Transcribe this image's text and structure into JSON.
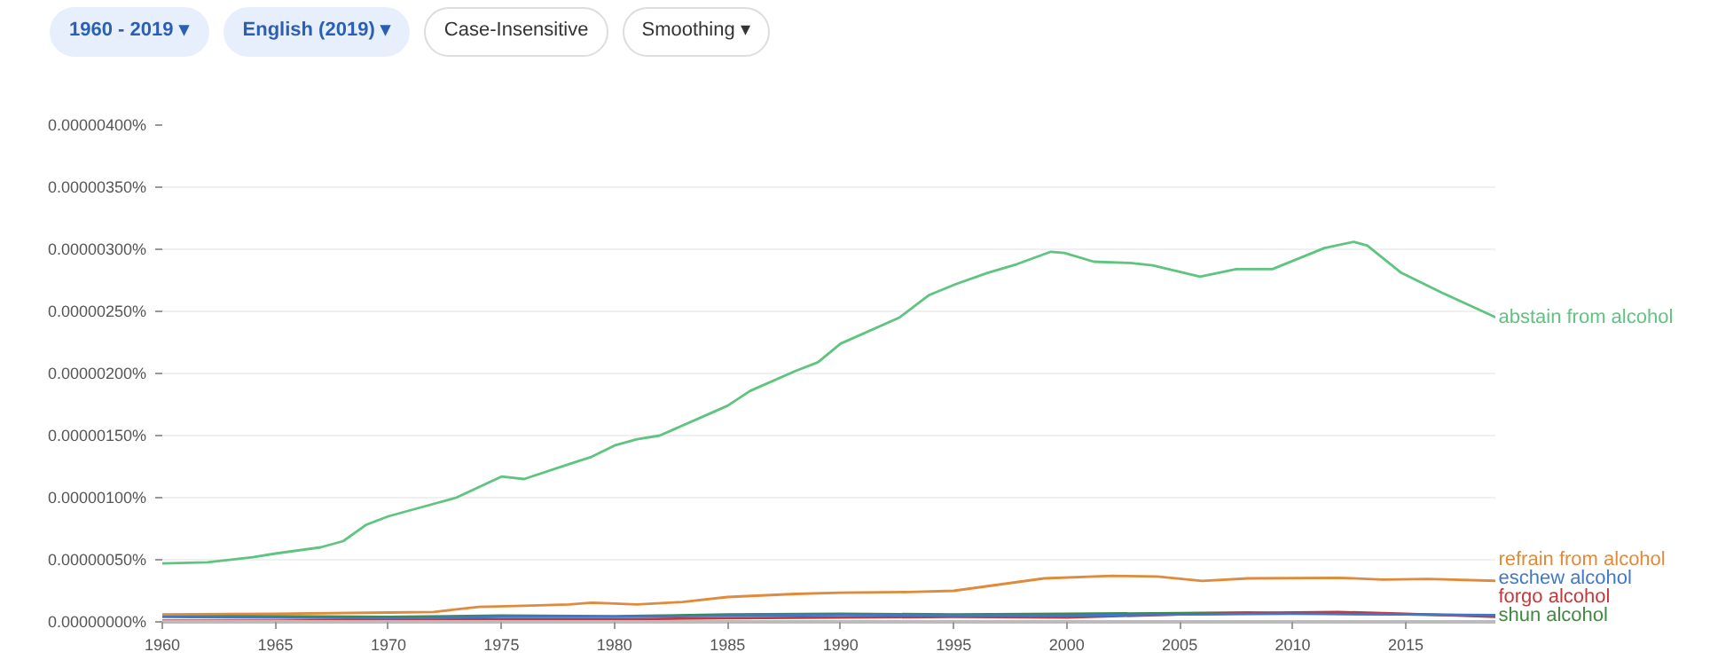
{
  "chart_data": {
    "type": "line",
    "annotations": [
      "1960 - 2019 ▾",
      "English (2019) ▾",
      "Case-Insensitive",
      "Smoothing ▾"
    ],
    "xlim": [
      1960,
      2019
    ],
    "xticks": [
      1960,
      1965,
      1970,
      1975,
      1980,
      1985,
      1990,
      1995,
      2000,
      2005,
      2010,
      2015
    ],
    "ylim": [
      0,
      4e-06
    ],
    "yticks": [
      {
        "value": 0,
        "label": "0.00000000%"
      },
      {
        "value": 5e-07,
        "label": "0.00000050%"
      },
      {
        "value": 1e-06,
        "label": "0.00000100%"
      },
      {
        "value": 1.5e-06,
        "label": "0.00000150%"
      },
      {
        "value": 2e-06,
        "label": "0.00000200%"
      },
      {
        "value": 2.5e-06,
        "label": "0.00000250%"
      },
      {
        "value": 3e-06,
        "label": "0.00000300%"
      },
      {
        "value": 3.5e-06,
        "label": "0.00000350%"
      },
      {
        "value": 4e-06,
        "label": "0.00000400%"
      }
    ],
    "grid": "y",
    "line_style": "solid",
    "marker": "none",
    "series": [
      {
        "name": "abstain from alcohol",
        "color": "#5ec47f",
        "x": [
          1960,
          1962,
          1964,
          1965,
          1967,
          1968,
          1969,
          1970,
          1972,
          1973,
          1975,
          1976,
          1978,
          1979,
          1980,
          1981,
          1982,
          1984,
          1985,
          1986,
          1988,
          1989,
          1990,
          1992.6,
          1993.9,
          1995.1,
          1996.5,
          1997.8,
          1999.3,
          1999.9,
          2001.2,
          2002.8,
          2003.8,
          2005.9,
          2007.5,
          2009.1,
          2011.4,
          2012.7,
          2013.3,
          2014.8,
          2016.6,
          2019
        ],
        "values": [
          4.7e-07,
          4.8e-07,
          5.2e-07,
          5.5e-07,
          6e-07,
          6.5e-07,
          7.8e-07,
          8.5e-07,
          9.5e-07,
          1e-06,
          1.17e-06,
          1.15e-06,
          1.27e-06,
          1.33e-06,
          1.42e-06,
          1.47e-06,
          1.5e-06,
          1.66e-06,
          1.74e-06,
          1.86e-06,
          2.02e-06,
          2.09e-06,
          2.24e-06,
          2.45e-06,
          2.63e-06,
          2.72e-06,
          2.81e-06,
          2.88e-06,
          2.98e-06,
          2.97e-06,
          2.9e-06,
          2.89e-06,
          2.87e-06,
          2.78e-06,
          2.84e-06,
          2.84e-06,
          3.01e-06,
          3.06e-06,
          3.03e-06,
          2.81e-06,
          2.65e-06,
          2.45e-06
        ]
      },
      {
        "name": "refrain from alcohol",
        "color": "#e08a3c",
        "x": [
          1960,
          1965,
          1970,
          1972,
          1974,
          1976,
          1978,
          1979,
          1981,
          1983,
          1985,
          1988,
          1990,
          1993,
          1995,
          1997,
          1999,
          2002,
          2004,
          2006,
          2008,
          2012,
          2014,
          2016,
          2019
        ],
        "values": [
          6e-08,
          6.5e-08,
          7.5e-08,
          8e-08,
          1.2e-07,
          1.3e-07,
          1.4e-07,
          1.55e-07,
          1.4e-07,
          1.6e-07,
          2e-07,
          2.25e-07,
          2.35e-07,
          2.4e-07,
          2.5e-07,
          3e-07,
          3.5e-07,
          3.7e-07,
          3.65e-07,
          3.3e-07,
          3.5e-07,
          3.55e-07,
          3.4e-07,
          3.45e-07,
          3.3e-07
        ]
      },
      {
        "name": "eschew alcohol",
        "color": "#3f78c9",
        "x": [
          1960,
          1965,
          1970,
          1975,
          1980,
          1985,
          1990,
          1995,
          2000,
          2005,
          2010,
          2015,
          2019
        ],
        "values": [
          4e-08,
          3.5e-08,
          3e-08,
          4e-08,
          4e-08,
          5e-08,
          5.5e-08,
          5e-08,
          5e-08,
          6e-08,
          6.5e-08,
          6e-08,
          5.5e-08
        ]
      },
      {
        "name": "forgo alcohol",
        "color": "#c0393b",
        "x": [
          1960,
          1965,
          1970,
          1975,
          1980,
          1985,
          1990,
          1995,
          2000,
          2005,
          2010,
          2012,
          2015,
          2019
        ],
        "values": [
          1e-08,
          1e-08,
          1.5e-08,
          2e-08,
          2e-08,
          3e-08,
          3.5e-08,
          4e-08,
          3.5e-08,
          6e-08,
          7.5e-08,
          8e-08,
          6.5e-08,
          4e-08
        ]
      },
      {
        "name": "shun alcohol",
        "color": "#3e8a3e",
        "x": [
          1960,
          1965,
          1970,
          1975,
          1980,
          1985,
          1990,
          1995,
          2000,
          2005,
          2008,
          2010,
          2015,
          2019
        ],
        "values": [
          5e-08,
          4.5e-08,
          4e-08,
          5e-08,
          4.5e-08,
          6e-08,
          6.5e-08,
          6e-08,
          6.5e-08,
          7e-08,
          7.5e-08,
          7e-08,
          6e-08,
          5e-08
        ]
      }
    ]
  }
}
